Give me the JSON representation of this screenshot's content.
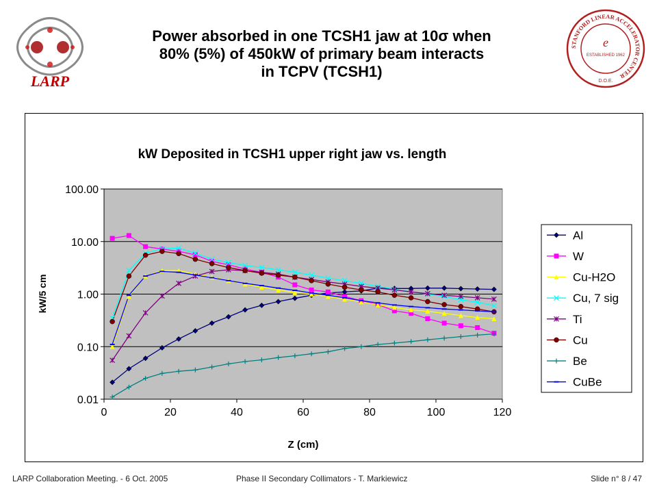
{
  "slide": {
    "title_line1": "Power absorbed in one TCSH1 jaw at 10σ when",
    "title_line2": "80% (5%) of 450kW of primary beam interacts",
    "title_line3": "in TCPV (TCSH1)"
  },
  "logos": {
    "left_text": "LARP",
    "right_ring_text": "STANFORD LINEAR ACCELERATOR CENTER",
    "right_established": "ESTABLISHED 1962",
    "right_doe": "D.O.E."
  },
  "footer": {
    "left": "LARP Collaboration Meeting.  -  6 Oct. 2005",
    "center": "Phase II Secondary Collimators  -  T. Markiewicz",
    "right": "Slide n° 8 / 47"
  },
  "colors": {
    "plot_bg": "#c0c0c0",
    "Al": "#000080",
    "W": "#ff00ff",
    "Cu-H2O": "#ffff00",
    "Cu, 7 sig": "#00ffff",
    "Ti": "#800080",
    "Cu": "#800000",
    "Be": "#008080",
    "CuBe": "#0000ff"
  },
  "chart_data": {
    "type": "line",
    "title": "kW Deposited in TCSH1 upper right jaw vs. length",
    "xlabel": "Z (cm)",
    "ylabel": "kW/5 cm",
    "xlim": [
      0,
      120
    ],
    "ylim": [
      0.01,
      100
    ],
    "yscale": "log",
    "xticks": [
      "0",
      "20",
      "40",
      "60",
      "80",
      "100",
      "120"
    ],
    "yticks": [
      "0.01",
      "0.10",
      "1.00",
      "10.00",
      "100.00"
    ],
    "grid": "horizontal major",
    "legend_position": "right",
    "x": [
      2.5,
      7.5,
      12.5,
      17.5,
      22.5,
      27.5,
      32.5,
      37.5,
      42.5,
      47.5,
      52.5,
      57.5,
      62.5,
      67.5,
      72.5,
      77.5,
      82.5,
      87.5,
      92.5,
      97.5,
      102.5,
      107.5,
      112.5,
      117.5
    ],
    "series": [
      {
        "name": "Al",
        "marker": "diamond",
        "values": [
          0.021,
          0.038,
          0.06,
          0.095,
          0.14,
          0.2,
          0.28,
          0.37,
          0.5,
          0.61,
          0.72,
          0.83,
          0.95,
          1.05,
          1.1,
          1.15,
          1.3,
          1.28,
          1.28,
          1.3,
          1.3,
          1.27,
          1.25,
          1.23
        ]
      },
      {
        "name": "W",
        "marker": "square",
        "values": [
          11.5,
          13,
          8,
          7.2,
          6.5,
          5.6,
          4.2,
          3.6,
          3,
          2.6,
          2.1,
          1.5,
          1.2,
          1.1,
          0.9,
          0.75,
          0.63,
          0.48,
          0.43,
          0.34,
          0.28,
          0.25,
          0.23,
          0.18
        ]
      },
      {
        "name": "Cu-H2O",
        "marker": "triangle",
        "values": [
          0.1,
          0.9,
          2.2,
          2.8,
          2.8,
          2.4,
          2.1,
          1.8,
          1.55,
          1.35,
          1.2,
          1.07,
          1,
          0.9,
          0.8,
          0.71,
          0.62,
          0.56,
          0.5,
          0.47,
          0.43,
          0.39,
          0.36,
          0.34
        ]
      },
      {
        "name": "Cu, 7 sig",
        "marker": "x",
        "values": [
          0.35,
          2.8,
          6,
          7.3,
          7.5,
          6,
          4.6,
          4,
          3.5,
          3.2,
          2.9,
          2.6,
          2.3,
          2,
          1.8,
          1.6,
          1.4,
          1.25,
          1.1,
          1,
          0.9,
          0.78,
          0.7,
          0.6
        ]
      },
      {
        "name": "Ti",
        "marker": "star",
        "values": [
          0.055,
          0.16,
          0.44,
          0.92,
          1.6,
          2.2,
          2.7,
          2.9,
          2.8,
          2.6,
          2.4,
          2.1,
          1.9,
          1.7,
          1.55,
          1.4,
          1.3,
          1.2,
          1.1,
          1.02,
          0.95,
          0.9,
          0.85,
          0.8
        ]
      },
      {
        "name": "Cu",
        "marker": "circle",
        "values": [
          0.3,
          2.2,
          5.5,
          6.5,
          5.9,
          4.6,
          3.8,
          3.2,
          2.8,
          2.5,
          2.3,
          2.1,
          1.8,
          1.55,
          1.35,
          1.2,
          1.1,
          0.95,
          0.85,
          0.72,
          0.63,
          0.58,
          0.52,
          0.46
        ]
      },
      {
        "name": "Be",
        "marker": "plus",
        "values": [
          0.011,
          0.017,
          0.025,
          0.031,
          0.034,
          0.036,
          0.041,
          0.047,
          0.052,
          0.056,
          0.062,
          0.067,
          0.073,
          0.08,
          0.092,
          0.1,
          0.11,
          0.117,
          0.125,
          0.135,
          0.145,
          0.155,
          0.166,
          0.175
        ]
      },
      {
        "name": "CuBe",
        "marker": "dash",
        "values": [
          0.11,
          0.95,
          2.2,
          2.7,
          2.6,
          2.3,
          2.05,
          1.8,
          1.6,
          1.45,
          1.3,
          1.18,
          1.05,
          0.95,
          0.85,
          0.75,
          0.68,
          0.62,
          0.58,
          0.55,
          0.52,
          0.5,
          0.48,
          0.46
        ]
      }
    ]
  }
}
